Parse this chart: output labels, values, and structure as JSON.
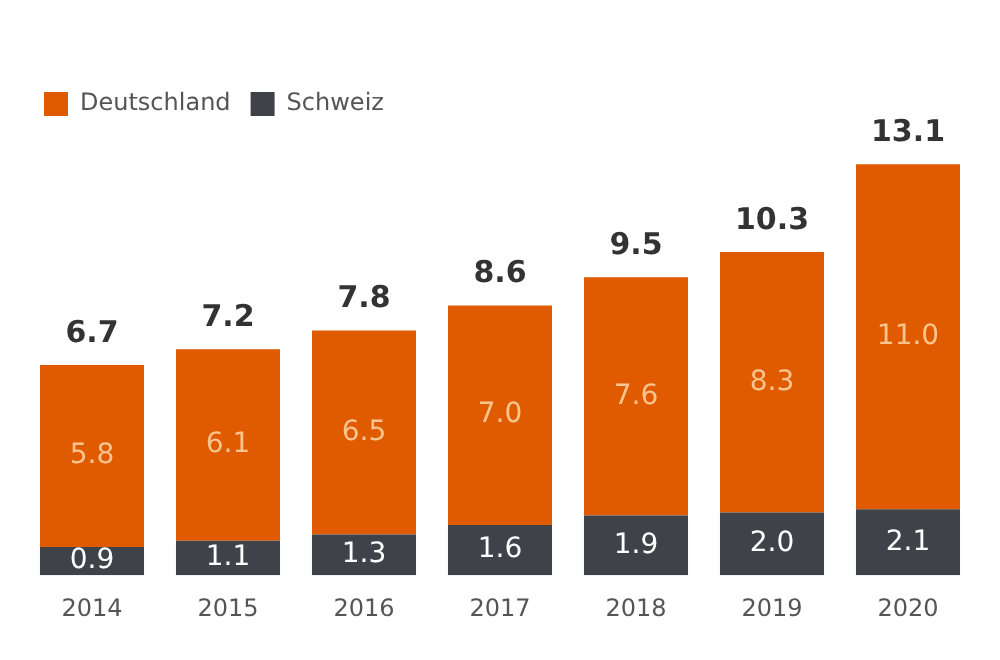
{
  "chart_data": {
    "type": "bar",
    "stacked": true,
    "categories": [
      "2014",
      "2015",
      "2016",
      "2017",
      "2018",
      "2019",
      "2020"
    ],
    "series": [
      {
        "name": "Schweiz",
        "color": "#3f4248",
        "values": [
          0.9,
          1.1,
          1.3,
          1.6,
          1.9,
          2.0,
          2.1
        ],
        "value_labels": [
          "0.9",
          "1.1",
          "1.3",
          "1.6",
          "1.9",
          "2.0",
          "2.1"
        ]
      },
      {
        "name": "Deutschland",
        "color": "#e05a00",
        "values": [
          5.8,
          6.1,
          6.5,
          7.0,
          7.6,
          8.3,
          11.0
        ],
        "value_labels": [
          "5.8",
          "6.1",
          "6.5",
          "7.0",
          "7.6",
          "8.3",
          "11.0"
        ]
      }
    ],
    "totals": [
      "6.7",
      "7.2",
      "7.8",
      "8.6",
      "9.5",
      "10.3",
      "13.1"
    ],
    "legend": "top left",
    "grid": false
  }
}
